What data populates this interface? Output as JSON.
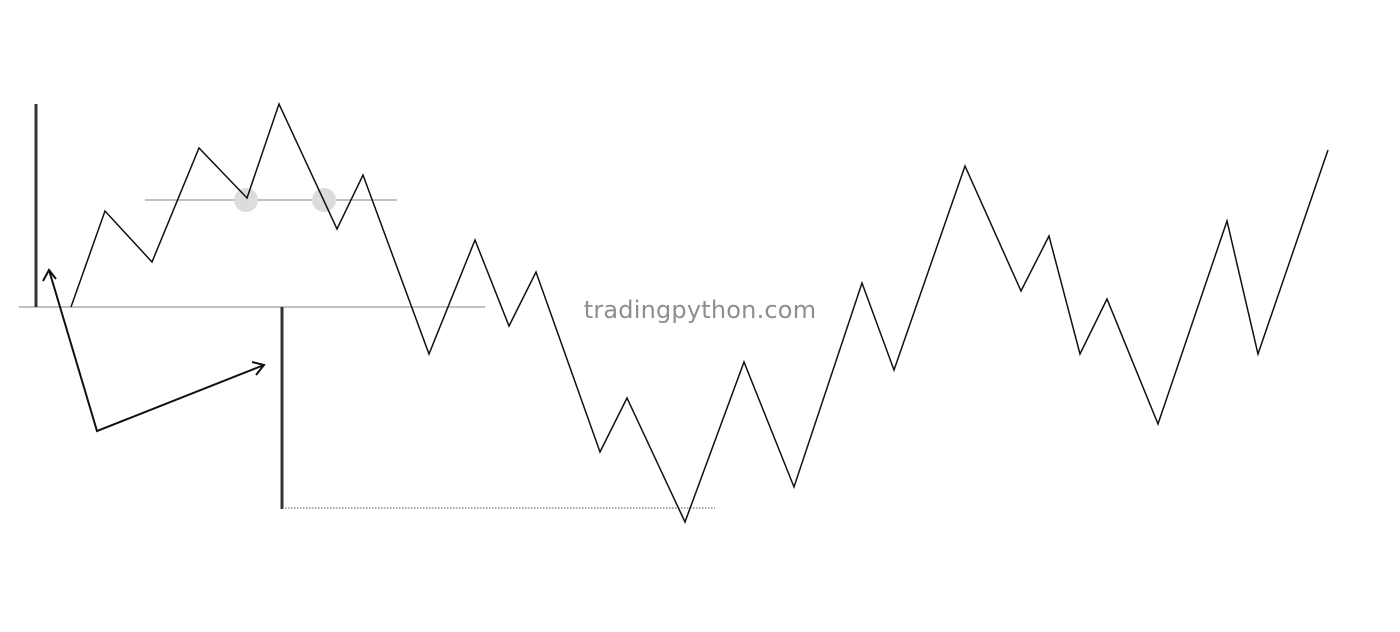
{
  "watermark": {
    "text": "tradingpython.com"
  },
  "colors": {
    "background": "#ffffff",
    "price_line": "#111111",
    "reference_lines": "#9c9c9c",
    "marker_circles": "#dcdcdc",
    "measure_bars": "#333333",
    "arrows": "#111111",
    "dotted_target": "#555555"
  },
  "diagram": {
    "pattern": "head-and-shoulders top with a measured-move projection",
    "elements": [
      "price-zigzag",
      "neckline",
      "support-line",
      "pattern-height-bar",
      "projected-height-bar",
      "target-dotted-line",
      "transfer-arrow",
      "marker-circles"
    ]
  }
}
